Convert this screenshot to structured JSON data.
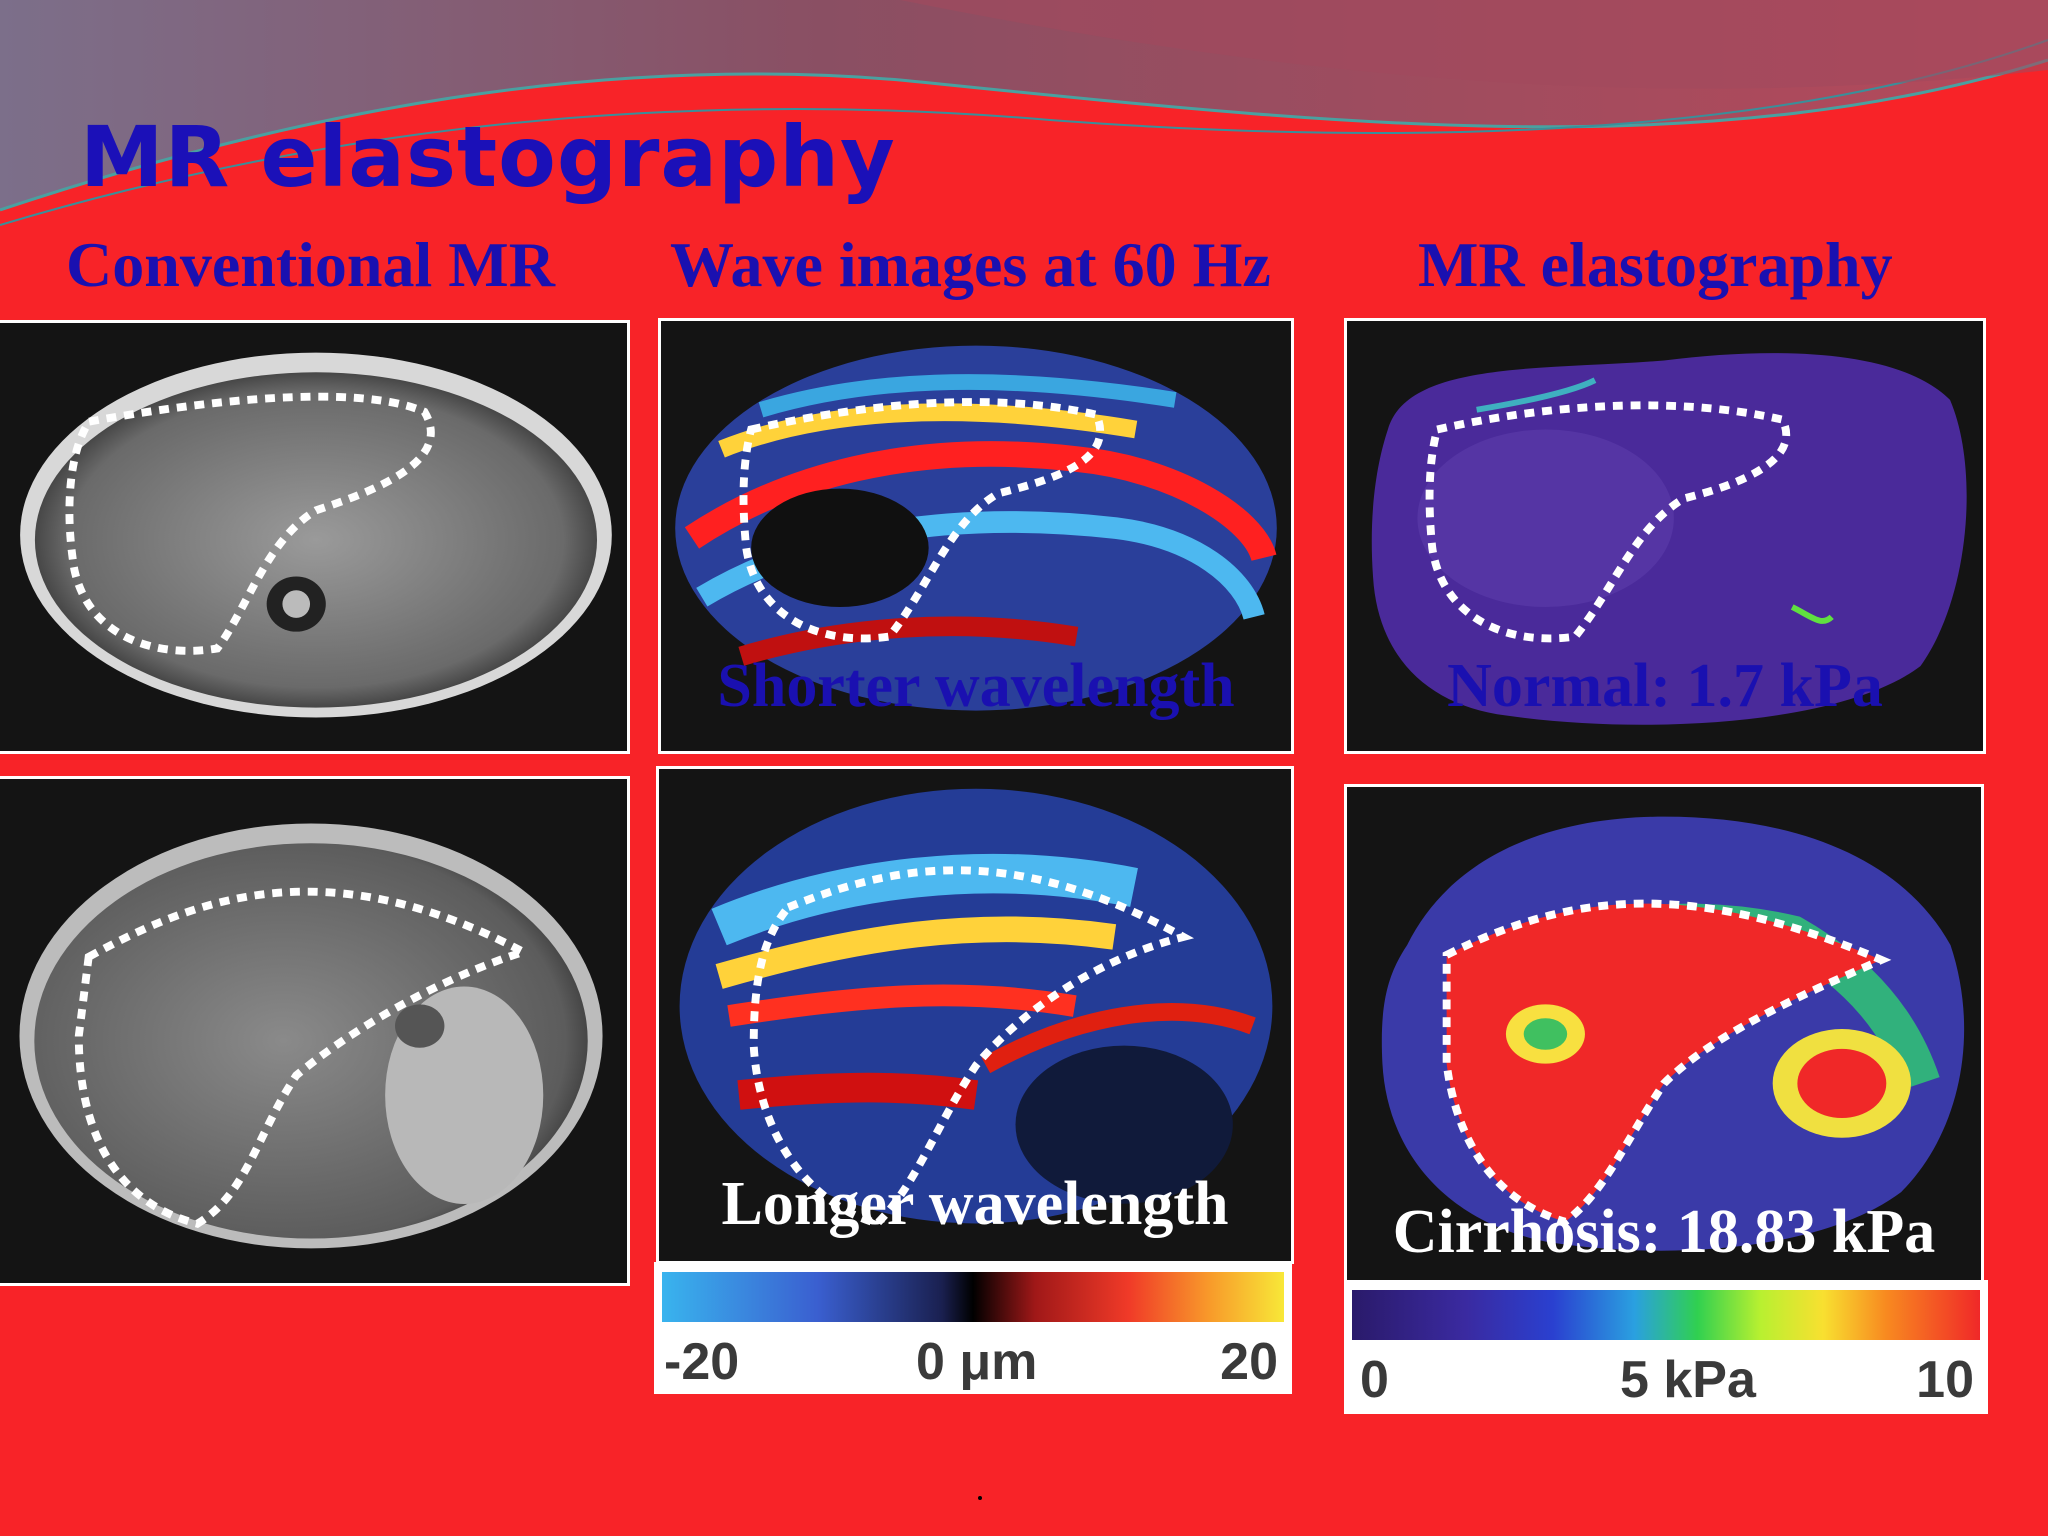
{
  "slide": {
    "title": "MR elastography"
  },
  "columns": [
    {
      "heading": "Conventional MR"
    },
    {
      "heading": "Wave images at 60 Hz"
    },
    {
      "heading": "MR elastography"
    }
  ],
  "panels": {
    "wave_top_label": "Shorter wavelength",
    "wave_bottom_label": "Longer wavelength",
    "mre_top_label": "Normal: 1.7 kPa",
    "mre_bottom_label": "Cirrhosis: 18.83 kPa"
  },
  "wave_scale": {
    "min_label": "-20",
    "mid_label": "0 μm",
    "max_label": "20"
  },
  "stiffness_scale": {
    "min_label": "0",
    "mid_label": "5 kPa",
    "max_label": "10"
  },
  "footer": {
    "mark": "."
  },
  "colors": {
    "background": "#f82328",
    "heading": "#1a10b0"
  }
}
